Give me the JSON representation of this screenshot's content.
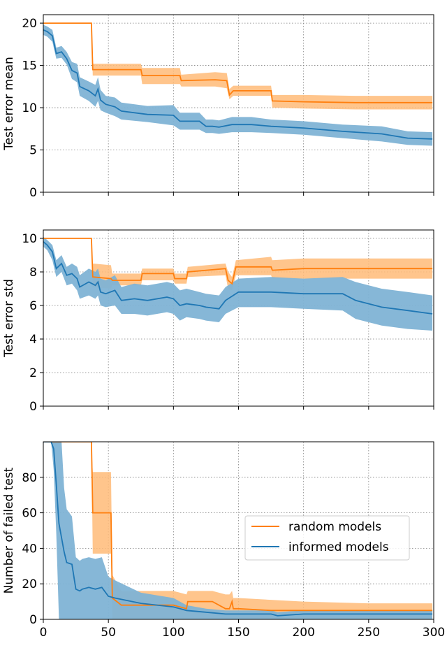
{
  "colors": {
    "random": "#ff7f0e",
    "informed": "#1f77b4",
    "random_band": "#ffbb78",
    "informed_band": "#7fb3d5"
  },
  "chart_data": [
    {
      "type": "line",
      "ylabel": "Test error mean",
      "xlim": [
        0,
        300
      ],
      "ylim": [
        0,
        21
      ],
      "yticks": [
        0,
        5,
        10,
        15,
        20
      ],
      "grid": true,
      "series": [
        {
          "key": "random",
          "x": [
            0,
            37,
            38,
            75,
            76,
            105,
            106,
            132,
            141,
            143,
            146,
            148,
            175,
            176,
            200,
            240,
            299
          ],
          "y": [
            20,
            20,
            14.5,
            14.5,
            13.8,
            13.8,
            13.2,
            13.3,
            13.2,
            11.5,
            12,
            12,
            12,
            10.8,
            10.7,
            10.6,
            10.6
          ],
          "lower": [
            20,
            20,
            13.8,
            13.8,
            12.8,
            12.8,
            12.5,
            12.5,
            12.3,
            11,
            11.4,
            11.4,
            11.4,
            10,
            9.9,
            9.8,
            9.8
          ],
          "upper": [
            20,
            20,
            15.2,
            15.2,
            14.7,
            14.7,
            13.9,
            14.2,
            14.1,
            12.2,
            12.6,
            12.6,
            12.6,
            11.5,
            11.5,
            11.4,
            11.4
          ]
        },
        {
          "key": "informed",
          "x": [
            0,
            3,
            7,
            10,
            14,
            18,
            22,
            26,
            28,
            35,
            40,
            42,
            44,
            48,
            55,
            60,
            80,
            100,
            105,
            120,
            125,
            130,
            135,
            145,
            160,
            175,
            200,
            230,
            260,
            280,
            299
          ],
          "y": [
            19.2,
            19,
            18.5,
            16.4,
            16.6,
            15.8,
            14.4,
            14.1,
            12.5,
            12,
            11.4,
            12.2,
            10.9,
            10.4,
            10.1,
            9.6,
            9.2,
            9.1,
            8.4,
            8.4,
            7.8,
            7.8,
            7.7,
            8,
            8,
            7.8,
            7.6,
            7.2,
            6.9,
            6.4,
            6.3
          ],
          "lower": [
            18.6,
            18.4,
            17.8,
            15.8,
            15.9,
            15.1,
            13.4,
            13,
            11.4,
            10.8,
            10.1,
            10.8,
            9.7,
            9.4,
            9,
            8.6,
            8.3,
            7.9,
            7.4,
            7.4,
            7,
            7,
            6.9,
            7.1,
            7.1,
            7,
            6.8,
            6.4,
            6,
            5.6,
            5.5
          ],
          "upper": [
            19.8,
            19.6,
            19.2,
            17.1,
            17.3,
            16.6,
            15.4,
            15.2,
            13.6,
            13.1,
            12.7,
            13.6,
            12.1,
            11.4,
            11.2,
            10.6,
            10.2,
            10.3,
            9.4,
            9.4,
            8.6,
            8.6,
            8.5,
            8.9,
            8.9,
            8.6,
            8.4,
            8,
            7.8,
            7.2,
            7.1
          ]
        }
      ]
    },
    {
      "type": "line",
      "ylabel": "Test error std",
      "xlim": [
        0,
        300
      ],
      "ylim": [
        0,
        10.5
      ],
      "yticks": [
        0,
        2,
        4,
        6,
        8,
        10
      ],
      "grid": true,
      "series": [
        {
          "key": "random",
          "x": [
            0,
            37,
            38,
            52,
            53,
            75,
            76,
            100,
            101,
            110,
            111,
            140,
            142,
            145,
            148,
            175,
            176,
            200,
            240,
            299
          ],
          "y": [
            10,
            10,
            7.7,
            7.6,
            7.5,
            7.5,
            7.9,
            7.9,
            7.6,
            7.6,
            8,
            8.2,
            7.5,
            7.3,
            8.3,
            8.3,
            8.1,
            8.2,
            8.2,
            8.2
          ],
          "lower": [
            10,
            10,
            7.1,
            7,
            7.2,
            7.2,
            7.5,
            7.5,
            7.3,
            7.3,
            7.7,
            7.8,
            7,
            6.9,
            7.8,
            7.8,
            7.6,
            7.6,
            7.6,
            7.6
          ],
          "upper": [
            10,
            10,
            8.5,
            8.4,
            7.9,
            7.9,
            8.2,
            8.2,
            7.9,
            7.9,
            8.3,
            8.5,
            8,
            7.7,
            8.7,
            8.9,
            8.7,
            8.8,
            8.8,
            8.8
          ]
        },
        {
          "key": "informed",
          "x": [
            0,
            3,
            7,
            10,
            14,
            18,
            22,
            26,
            28,
            35,
            40,
            42,
            44,
            48,
            55,
            60,
            70,
            80,
            95,
            100,
            105,
            110,
            120,
            125,
            135,
            140,
            150,
            175,
            200,
            230,
            240,
            260,
            280,
            299
          ],
          "y": [
            9.8,
            9.6,
            9.2,
            8.2,
            8.5,
            7.8,
            7.9,
            7.6,
            7.1,
            7.4,
            7.2,
            7.4,
            6.8,
            6.7,
            6.9,
            6.3,
            6.4,
            6.3,
            6.5,
            6.4,
            6,
            6.1,
            6,
            5.9,
            5.8,
            6.3,
            6.8,
            6.8,
            6.7,
            6.7,
            6.3,
            5.9,
            5.7,
            5.5
          ],
          "lower": [
            9.5,
            9.3,
            8.7,
            7.7,
            8,
            7.2,
            7.3,
            6.9,
            6.4,
            6.6,
            6.4,
            6.6,
            6,
            5.9,
            6,
            5.5,
            5.5,
            5.4,
            5.6,
            5.5,
            5.1,
            5.3,
            5.2,
            5.1,
            5,
            5.5,
            5.9,
            5.9,
            5.8,
            5.7,
            5.2,
            4.8,
            4.6,
            4.5
          ],
          "upper": [
            10.1,
            9.9,
            9.6,
            8.7,
            9,
            8.3,
            8.5,
            8.3,
            7.8,
            8.2,
            8,
            8.2,
            7.6,
            7.5,
            7.8,
            7.1,
            7.3,
            7.2,
            7.4,
            7.3,
            6.9,
            7,
            6.8,
            6.7,
            6.6,
            7.1,
            7.6,
            7.7,
            7.6,
            7.7,
            7.4,
            7,
            6.8,
            6.6
          ]
        }
      ]
    },
    {
      "type": "line",
      "ylabel": "Number of failed test",
      "xlabel": "",
      "xlim": [
        0,
        300
      ],
      "ylim": [
        0,
        100
      ],
      "xticks": [
        0,
        50,
        100,
        150,
        200,
        250,
        300
      ],
      "yticks": [
        0,
        20,
        40,
        60,
        80
      ],
      "grid": true,
      "legend": {
        "placement": "center-right",
        "entries": [
          {
            "key": "random",
            "label": "random models"
          },
          {
            "key": "informed",
            "label": "informed models"
          }
        ]
      },
      "series": [
        {
          "key": "random",
          "x": [
            0,
            37,
            38,
            52,
            53,
            60,
            75,
            100,
            110,
            111,
            130,
            140,
            143,
            145,
            146,
            150,
            175,
            200,
            250,
            299
          ],
          "y": [
            100,
            100,
            60,
            60,
            12,
            8,
            8,
            8,
            6,
            10,
            10,
            6,
            6,
            10,
            6,
            6,
            5,
            5,
            5,
            5
          ],
          "lower": [
            100,
            100,
            37,
            37,
            0,
            0,
            0,
            0,
            0,
            0,
            0,
            0,
            0,
            0,
            0,
            0,
            0,
            0,
            0,
            0
          ],
          "upper": [
            100,
            100,
            83,
            83,
            25,
            16,
            16,
            16,
            14,
            16,
            16,
            14,
            14,
            16,
            12,
            12,
            11,
            10,
            9,
            9
          ]
        },
        {
          "key": "informed",
          "x": [
            0,
            6,
            8,
            10,
            12,
            14,
            16,
            18,
            22,
            25,
            28,
            30,
            35,
            40,
            45,
            50,
            55,
            75,
            100,
            110,
            125,
            140,
            175,
            180,
            200,
            250,
            299
          ],
          "y": [
            100,
            100,
            96,
            76,
            54,
            46,
            38,
            32,
            31,
            17,
            16,
            17,
            18,
            17,
            18,
            13,
            12,
            9,
            7,
            5,
            4,
            3,
            3,
            2,
            3,
            3,
            3
          ],
          "lower": [
            100,
            100,
            84,
            48,
            0,
            0,
            0,
            0,
            0,
            0,
            0,
            0,
            0,
            0,
            0,
            0,
            0,
            0,
            0,
            0,
            0,
            0,
            0,
            0,
            0,
            0,
            0
          ],
          "upper": [
            100,
            100,
            100,
            100,
            100,
            100,
            74,
            62,
            58,
            35,
            33,
            34,
            35,
            34,
            35,
            24,
            22,
            15,
            12,
            8,
            6,
            5,
            5,
            4,
            5,
            5,
            5
          ]
        }
      ]
    }
  ]
}
